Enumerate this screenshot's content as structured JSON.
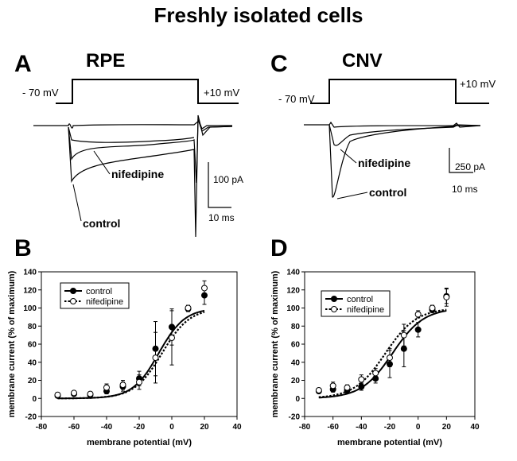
{
  "figure": {
    "title": "Freshly isolated cells"
  },
  "panels": {
    "A": {
      "letter": "A",
      "name": "RPE",
      "v_hold": "- 70 mV",
      "v_step": "+10 mV",
      "trace_labels": [
        "nifedipine",
        "control"
      ],
      "scale_current": "100 pA",
      "scale_time": "10 ms"
    },
    "C": {
      "letter": "C",
      "name": "CNV",
      "v_hold": "- 70 mV",
      "v_step": "+10 mV",
      "trace_labels": [
        "nifedipine",
        "control"
      ],
      "scale_current": "250 pA",
      "scale_time": "10 ms"
    },
    "B": {
      "letter": "B"
    },
    "D": {
      "letter": "D"
    }
  },
  "chart_data": [
    {
      "panel": "B",
      "type": "line",
      "xlabel": "membrane potential (mV)",
      "ylabel": "membrane current (% of maximum)",
      "xlim": [
        -80,
        40
      ],
      "ylim": [
        -20,
        140
      ],
      "xticks": [
        -80,
        -60,
        -40,
        -20,
        0,
        20,
        40
      ],
      "yticks": [
        -20,
        0,
        20,
        40,
        60,
        80,
        100,
        120,
        140
      ],
      "legend": "top-left",
      "series": [
        {
          "name": "control",
          "marker": "filled-circle",
          "line": "solid",
          "x": [
            -70,
            -60,
            -50,
            -40,
            -30,
            -20,
            -10,
            0,
            10,
            20
          ],
          "y": [
            3,
            5,
            4,
            8,
            13,
            22,
            55,
            79,
            99,
            114
          ],
          "err": [
            2,
            2,
            2,
            3,
            5,
            8,
            30,
            20,
            3,
            10
          ],
          "fit": {
            "v_half": -8,
            "slope": 8
          }
        },
        {
          "name": "nifedipine",
          "marker": "open-circle",
          "line": "dotted",
          "x": [
            -70,
            -60,
            -50,
            -40,
            -30,
            -20,
            -10,
            0,
            10,
            20
          ],
          "y": [
            4,
            6,
            5,
            12,
            15,
            18,
            45,
            67,
            100,
            122
          ],
          "err": [
            2,
            2,
            2,
            4,
            5,
            8,
            28,
            30,
            3,
            8
          ],
          "fit": {
            "v_half": -6,
            "slope": 8.5
          }
        }
      ]
    },
    {
      "panel": "D",
      "type": "line",
      "xlabel": "membrane potential (mV)",
      "ylabel": "membrane current (% of maximum)",
      "xlim": [
        -80,
        40
      ],
      "ylim": [
        -20,
        140
      ],
      "xticks": [
        -80,
        -60,
        -40,
        -20,
        0,
        20,
        40
      ],
      "yticks": [
        -20,
        0,
        20,
        40,
        60,
        80,
        100,
        120,
        140
      ],
      "legend": "top-left",
      "series": [
        {
          "name": "control",
          "marker": "filled-circle",
          "line": "solid",
          "x": [
            -70,
            -60,
            -50,
            -40,
            -30,
            -20,
            -10,
            0,
            10,
            20
          ],
          "y": [
            8,
            10,
            9,
            13,
            22,
            38,
            55,
            76,
            98,
            113
          ],
          "err": [
            2,
            3,
            3,
            4,
            5,
            15,
            20,
            8,
            3,
            8
          ],
          "fit": {
            "v_half": -18,
            "slope": 11
          }
        },
        {
          "name": "nifedipine",
          "marker": "open-circle",
          "line": "dotted",
          "x": [
            -70,
            -60,
            -50,
            -40,
            -30,
            -20,
            -10,
            0,
            10,
            20
          ],
          "y": [
            9,
            14,
            12,
            21,
            28,
            45,
            70,
            93,
            100,
            112
          ],
          "err": [
            2,
            4,
            3,
            5,
            5,
            10,
            12,
            4,
            3,
            10
          ],
          "fit": {
            "v_half": -23,
            "slope": 11
          }
        }
      ]
    }
  ]
}
